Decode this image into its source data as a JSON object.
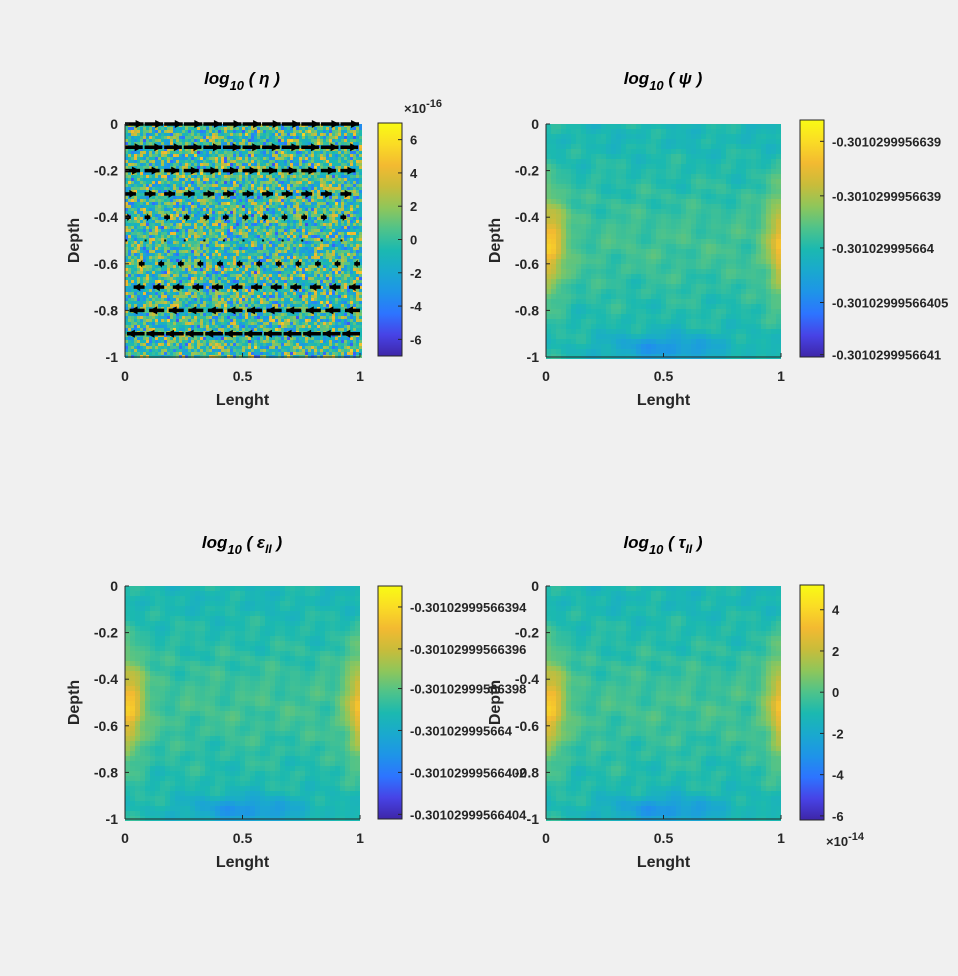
{
  "colors": {
    "background": "#f0f0f0",
    "colormap": [
      "#3e26a8",
      "#4743e6",
      "#2d74ff",
      "#1e94e8",
      "#1aa9ce",
      "#1bb9b0",
      "#4fc38a",
      "#8fc65a",
      "#c9bc3a",
      "#f3ba31",
      "#fadc25",
      "#f9fb14"
    ],
    "arrow": "#000000"
  },
  "chart_data": [
    {
      "type": "heatmap",
      "id": "eta",
      "title_main": "log",
      "title_sub": "10",
      "title_arg": " ( η )",
      "xlabel": "Lenght",
      "ylabel": "Depth",
      "xlim": [
        0,
        1
      ],
      "ylim": [
        -1,
        0
      ],
      "xticks": [
        "0",
        "0.5",
        "1"
      ],
      "yticks": [
        "0",
        "-0.2",
        "-0.4",
        "-0.6",
        "-0.8",
        "-1"
      ],
      "field": "random-noise",
      "colorbar": {
        "range": [
          -7,
          7
        ],
        "ticks": [
          "6",
          "4",
          "2",
          "0",
          "-2",
          "-4",
          "-6"
        ],
        "tick_values": [
          6,
          4,
          2,
          0,
          -2,
          -4,
          -6
        ],
        "exponent_base": "×10",
        "exponent": "-16",
        "exponent_position": "top"
      },
      "quiver": {
        "direction_top": "right",
        "direction_bottom": "left",
        "rows_y": [
          0,
          -0.1,
          -0.2,
          -0.3,
          -0.4,
          -0.5,
          -0.6,
          -0.7,
          -0.8,
          -0.9
        ]
      }
    },
    {
      "type": "heatmap",
      "id": "psi",
      "title_main": "log",
      "title_sub": "10",
      "title_arg": " ( ψ )",
      "xlabel": "Lenght",
      "ylabel": "Depth",
      "xlim": [
        0,
        1
      ],
      "ylim": [
        -1,
        0
      ],
      "xticks": [
        "0",
        "0.5",
        "1"
      ],
      "yticks": [
        "0",
        "-0.2",
        "-0.4",
        "-0.6",
        "-0.8",
        "-1"
      ],
      "field": "smooth-side-high",
      "colorbar": {
        "ticks": [
          "-0.3010299956639",
          "-0.3010299956639",
          "-0.301029995664",
          "-0.30102999566405",
          "-0.3010299956641"
        ],
        "tick_fracs": [
          0.09,
          0.32,
          0.54,
          0.77,
          0.99
        ]
      }
    },
    {
      "type": "heatmap",
      "id": "epsilon",
      "title_main": "log",
      "title_sub": "10",
      "title_arg": " ( ε",
      "title_arg_sub": "II",
      "title_close": " )",
      "xlabel": "Lenght",
      "ylabel": "Depth",
      "xlim": [
        0,
        1
      ],
      "ylim": [
        -1,
        0
      ],
      "xticks": [
        "0",
        "0.5",
        "1"
      ],
      "yticks": [
        "0",
        "-0.2",
        "-0.4",
        "-0.6",
        "-0.8",
        "-1"
      ],
      "field": "smooth-side-high",
      "colorbar": {
        "ticks": [
          "-0.30102999566394",
          "-0.30102999566396",
          "-0.30102999566398",
          "-0.301029995664",
          "-0.30102999566402",
          "-0.30102999566404"
        ],
        "tick_fracs": [
          0.09,
          0.27,
          0.44,
          0.62,
          0.8,
          0.98
        ]
      }
    },
    {
      "type": "heatmap",
      "id": "tau",
      "title_main": "log",
      "title_sub": "10",
      "title_arg": " ( τ",
      "title_arg_sub": "II",
      "title_close": " )",
      "xlabel": "Lenght",
      "ylabel": "Depth",
      "xlim": [
        0,
        1
      ],
      "ylim": [
        -1,
        0
      ],
      "xticks": [
        "0",
        "0.5",
        "1"
      ],
      "yticks": [
        "0",
        "-0.2",
        "-0.4",
        "-0.6",
        "-0.8",
        "-1"
      ],
      "field": "smooth-side-high",
      "colorbar": {
        "range": [
          -6.2,
          5.2
        ],
        "ticks": [
          "4",
          "2",
          "0",
          "-2",
          "-4",
          "-6"
        ],
        "tick_values": [
          4,
          2,
          0,
          -2,
          -4,
          -6
        ],
        "exponent_base": "×10",
        "exponent": "-14",
        "exponent_position": "bottom"
      }
    }
  ]
}
